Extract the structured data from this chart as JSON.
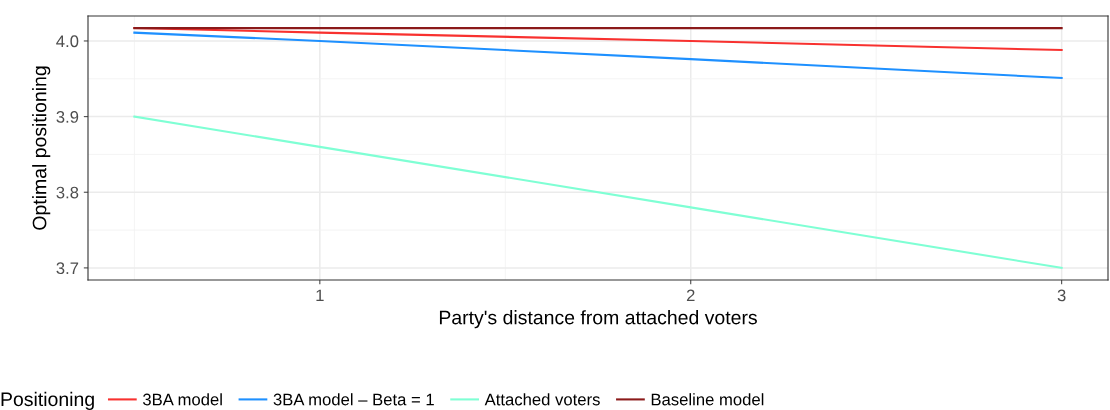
{
  "chart_data": {
    "type": "line",
    "xlabel": "Party's distance from attached voters",
    "ylabel": "Optimal positioning",
    "legend_title": "Positioning",
    "x": [
      0.5,
      1,
      2,
      3
    ],
    "series": [
      {
        "name": "3BA model",
        "color": "#f8312f",
        "values": [
          4.017,
          4.011,
          4.0,
          3.988
        ]
      },
      {
        "name": "3BA model – Beta = 1",
        "color": "#1e90ff",
        "values": [
          4.011,
          4.0,
          3.976,
          3.951
        ]
      },
      {
        "name": "Attached voters",
        "color": "#7fffd4",
        "values": [
          3.9,
          3.86,
          3.78,
          3.7
        ]
      },
      {
        "name": "Baseline model",
        "color": "#8b1a1a",
        "values": [
          4.017,
          4.017,
          4.017,
          4.017
        ]
      }
    ],
    "xlim": [
      0.375,
      3.125
    ],
    "xticks": [
      1,
      2,
      3
    ],
    "ylim": [
      3.684,
      4.033
    ],
    "yticks": [
      {
        "value": 3.7,
        "label": "3.7"
      },
      {
        "value": 3.8,
        "label": "3.8"
      },
      {
        "value": 3.9,
        "label": "3.9"
      },
      {
        "value": 4.0,
        "label": "4.0"
      }
    ],
    "grid": true,
    "legend": "bottom"
  }
}
